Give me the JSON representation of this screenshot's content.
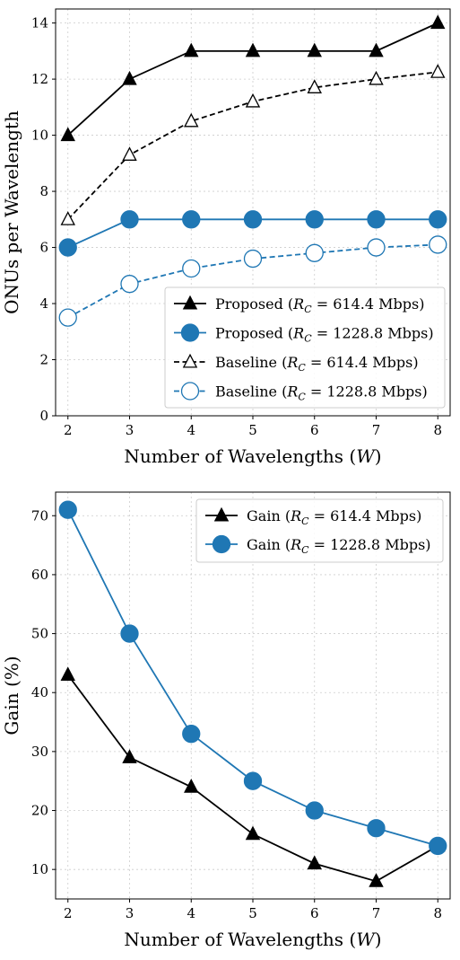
{
  "chart_data": [
    {
      "type": "line",
      "xlabel_main": "Number of Wavelengths (",
      "xlabel_var": "W",
      "xlabel_end": ")",
      "ylabel": "ONUs per Wavelength",
      "x": [
        2,
        3,
        4,
        5,
        6,
        7,
        8
      ],
      "xlim": [
        1.8,
        8.2
      ],
      "ylim": [
        0,
        14.5
      ],
      "yticks": [
        0,
        2,
        4,
        6,
        8,
        10,
        12,
        14
      ],
      "grid": true,
      "legend_placement": "bottom-right",
      "series": [
        {
          "name_pre": "Proposed (",
          "name_post": " = 614.4 Mbps)",
          "values": [
            10,
            12,
            13,
            13,
            13,
            13,
            14
          ],
          "color": "#000000",
          "marker": "triangle",
          "filled": true,
          "dashed": false
        },
        {
          "name_pre": "Proposed (",
          "name_post": " = 1228.8 Mbps)",
          "values": [
            6,
            7,
            7,
            7,
            7,
            7,
            7
          ],
          "color": "#1f77b4",
          "marker": "circle",
          "filled": true,
          "dashed": false
        },
        {
          "name_pre": "Baseline (",
          "name_post": " = 614.4 Mbps)",
          "values": [
            7,
            9.3,
            10.5,
            11.2,
            11.7,
            12,
            12.25
          ],
          "color": "#000000",
          "marker": "triangle",
          "filled": false,
          "dashed": true
        },
        {
          "name_pre": "Baseline (",
          "name_post": " = 1228.8 Mbps)",
          "values": [
            3.5,
            4.7,
            5.25,
            5.6,
            5.8,
            6,
            6.1
          ],
          "color": "#1f77b4",
          "marker": "circle",
          "filled": false,
          "dashed": true
        }
      ]
    },
    {
      "type": "line",
      "xlabel_main": "Number of Wavelengths (",
      "xlabel_var": "W",
      "xlabel_end": ")",
      "ylabel": "Gain (%)",
      "x": [
        2,
        3,
        4,
        5,
        6,
        7,
        8
      ],
      "xlim": [
        1.8,
        8.2
      ],
      "ylim": [
        5,
        74
      ],
      "yticks": [
        10,
        20,
        30,
        40,
        50,
        60,
        70
      ],
      "grid": true,
      "legend_placement": "top-right",
      "series": [
        {
          "name_pre": "Gain (",
          "name_post": " = 614.4 Mbps)",
          "values": [
            43,
            29,
            24,
            16,
            11,
            8,
            14
          ],
          "color": "#000000",
          "marker": "triangle",
          "filled": true,
          "dashed": false
        },
        {
          "name_pre": "Gain (",
          "name_post": " = 1228.8 Mbps)",
          "values": [
            71,
            50,
            33,
            25,
            20,
            17,
            14
          ],
          "color": "#1f77b4",
          "marker": "circle",
          "filled": true,
          "dashed": false
        }
      ]
    }
  ],
  "symbols": {
    "rc_main": "R",
    "rc_sub": "C"
  }
}
